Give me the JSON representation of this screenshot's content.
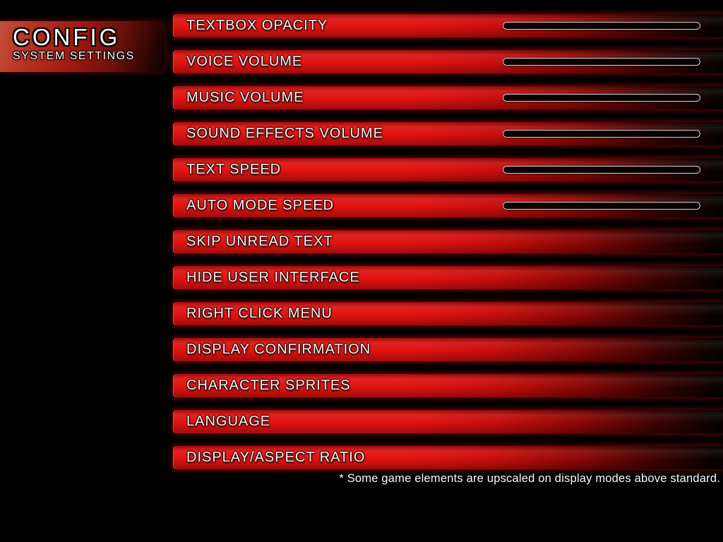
{
  "title": {
    "heading": "CONFIG",
    "subheading": "SYSTEM SETTINGS"
  },
  "rows": [
    {
      "label": "TEXTBOX OPACITY",
      "has_slider": true
    },
    {
      "label": "VOICE VOLUME",
      "has_slider": true
    },
    {
      "label": "MUSIC VOLUME",
      "has_slider": true
    },
    {
      "label": "SOUND EFFECTS VOLUME",
      "has_slider": true
    },
    {
      "label": "TEXT SPEED",
      "has_slider": true
    },
    {
      "label": "AUTO MODE SPEED",
      "has_slider": true
    },
    {
      "label": "SKIP UNREAD TEXT",
      "has_slider": false
    },
    {
      "label": "HIDE USER INTERFACE",
      "has_slider": false
    },
    {
      "label": "RIGHT CLICK MENU",
      "has_slider": false
    },
    {
      "label": "DISPLAY CONFIRMATION",
      "has_slider": false
    },
    {
      "label": "CHARACTER SPRITES",
      "has_slider": false
    },
    {
      "label": "LANGUAGE",
      "has_slider": false
    },
    {
      "label": "DISPLAY/ASPECT RATIO",
      "has_slider": false
    }
  ],
  "footnote": "* Some game elements are upscaled on display modes above standard.",
  "colors": {
    "background": "#000000",
    "bar_red": "#e11311",
    "title_red": "#a11a10",
    "slider_border": "#d6d6d6",
    "label_text": "#f4f4f4"
  }
}
